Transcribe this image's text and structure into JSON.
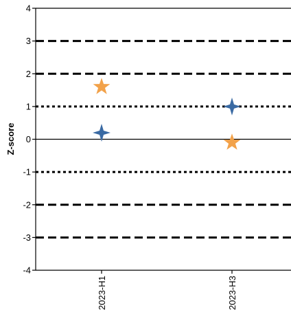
{
  "chart_data": {
    "type": "scatter",
    "title": "",
    "xlabel": "",
    "ylabel": "Z-score",
    "categories": [
      "2023-H1",
      "2023-H3"
    ],
    "ylim": [
      -4,
      4
    ],
    "yticks": [
      4,
      3,
      2,
      1,
      0,
      -1,
      -2,
      -3,
      -4
    ],
    "ytick_labels": [
      "4",
      "3",
      "2",
      "1",
      "0",
      "-1",
      "-2",
      "-3",
      "-4"
    ],
    "reference_lines": [
      {
        "y": 3,
        "style": "dashed"
      },
      {
        "y": 2,
        "style": "dashed"
      },
      {
        "y": 1,
        "style": "dotted"
      },
      {
        "y": 0,
        "style": "solid"
      },
      {
        "y": -1,
        "style": "dotted"
      },
      {
        "y": -2,
        "style": "dashed"
      },
      {
        "y": -3,
        "style": "dashed"
      }
    ],
    "series": [
      {
        "marker": "diamond-star",
        "color": "#3a6aa3",
        "values": [
          0.2,
          1.0
        ]
      },
      {
        "marker": "star",
        "color": "#f2a24a",
        "values": [
          1.6,
          -0.1
        ]
      }
    ],
    "grid": false,
    "legend": "none"
  }
}
